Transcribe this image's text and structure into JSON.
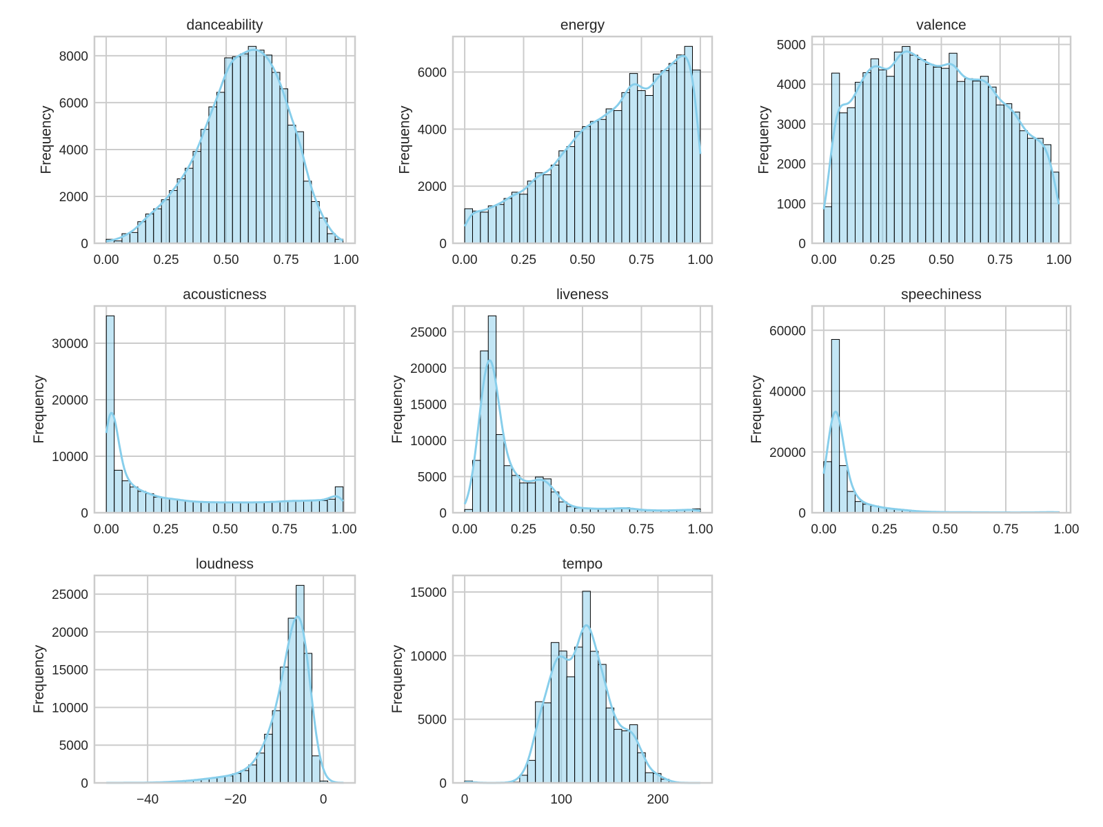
{
  "figure": {
    "colors": {
      "bar_fill": "#87CEEB",
      "bar_fill_opacity": 0.5,
      "bar_edge": "#000000",
      "kde_line": "#87CEEB",
      "grid": "#cccccc",
      "spine": "#cccccc",
      "text": "#262626"
    }
  },
  "chart_data": [
    {
      "type": "bar",
      "title": "danceability",
      "xlabel": "",
      "ylabel": "Frequency",
      "bins": {
        "start": 0.0,
        "width": 0.0329,
        "count": 30
      },
      "values": [
        170,
        100,
        410,
        460,
        920,
        1250,
        1470,
        1860,
        2250,
        2750,
        3200,
        3920,
        4860,
        5820,
        6440,
        7910,
        7960,
        8080,
        8400,
        8240,
        8030,
        7290,
        6590,
        5040,
        4760,
        2650,
        1780,
        1080,
        410,
        170
      ],
      "xlim": [
        -0.049,
        1.037
      ],
      "ylim": [
        0,
        8820
      ],
      "xticks": [
        0.0,
        0.25,
        0.5,
        0.75,
        1.0
      ],
      "xtick_labels": [
        "0.00",
        "0.25",
        "0.50",
        "0.75",
        "1.00"
      ],
      "yticks": [
        0,
        2000,
        4000,
        6000,
        8000
      ],
      "ytick_labels": [
        "0",
        "2000",
        "4000",
        "6000",
        "8000"
      ],
      "kde": true,
      "grid": true
    },
    {
      "type": "bar",
      "title": "energy",
      "xlabel": "",
      "ylabel": "Frequency",
      "bins": {
        "start": 0.0,
        "width": 0.03333,
        "count": 30
      },
      "values": [
        1210,
        1130,
        1090,
        1310,
        1360,
        1570,
        1790,
        1720,
        2180,
        2470,
        2400,
        2740,
        3240,
        3390,
        3920,
        4090,
        4270,
        4340,
        4710,
        4650,
        5280,
        5950,
        5350,
        5180,
        5930,
        6050,
        6300,
        6600,
        6900,
        6070
      ],
      "xlim": [
        -0.05,
        1.05
      ],
      "ylim": [
        0,
        7245
      ],
      "xticks": [
        0.0,
        0.25,
        0.5,
        0.75,
        1.0
      ],
      "xtick_labels": [
        "0.00",
        "0.25",
        "0.50",
        "0.75",
        "1.00"
      ],
      "yticks": [
        0,
        2000,
        4000,
        6000
      ],
      "ytick_labels": [
        "0",
        "2000",
        "4000",
        "6000"
      ],
      "kde": true,
      "grid": true
    },
    {
      "type": "bar",
      "title": "valence",
      "xlabel": "",
      "ylabel": "Frequency",
      "bins": {
        "start": 0.0,
        "width": 0.03333,
        "count": 30
      },
      "values": [
        920,
        4280,
        3280,
        3410,
        4050,
        4290,
        4640,
        4360,
        4200,
        4810,
        4950,
        4730,
        4620,
        4500,
        4430,
        4400,
        4780,
        4070,
        4140,
        4080,
        4200,
        3930,
        3480,
        3510,
        3300,
        2830,
        2640,
        2640,
        2480,
        1790
      ],
      "xlim": [
        -0.05,
        1.05
      ],
      "ylim": [
        0,
        5200
      ],
      "xticks": [
        0.0,
        0.25,
        0.5,
        0.75,
        1.0
      ],
      "xtick_labels": [
        "0.00",
        "0.25",
        "0.50",
        "0.75",
        "1.00"
      ],
      "yticks": [
        0,
        1000,
        2000,
        3000,
        4000,
        5000
      ],
      "ytick_labels": [
        "0",
        "1000",
        "2000",
        "3000",
        "4000",
        "5000"
      ],
      "kde": true,
      "grid": true
    },
    {
      "type": "bar",
      "title": "acousticness",
      "xlabel": "",
      "ylabel": "Frequency",
      "bins": {
        "start": 0.0,
        "width": 0.0332,
        "count": 30
      },
      "values": [
        34840,
        7520,
        5650,
        4550,
        3780,
        3370,
        2760,
        2560,
        2440,
        2240,
        2030,
        1910,
        1910,
        1830,
        1830,
        1830,
        1830,
        1830,
        1830,
        1830,
        1910,
        1910,
        2030,
        2110,
        2110,
        2110,
        2240,
        2150,
        2400,
        4590
      ],
      "xlim": [
        -0.05,
        1.046
      ],
      "ylim": [
        0,
        36580
      ],
      "xticks": [
        0.0,
        0.25,
        0.5,
        0.75,
        1.0
      ],
      "xtick_labels": [
        "0.00",
        "0.25",
        "0.50",
        "0.75",
        "1.00"
      ],
      "yticks": [
        0,
        10000,
        20000,
        30000
      ],
      "ytick_labels": [
        "0",
        "10000",
        "20000",
        "30000"
      ],
      "kde": true,
      "grid": true
    },
    {
      "type": "bar",
      "title": "liveness",
      "xlabel": "",
      "ylabel": "Frequency",
      "bins": {
        "start": 0.0,
        "width": 0.03333,
        "count": 30
      },
      "values": [
        450,
        7230,
        22360,
        27200,
        10800,
        6500,
        5160,
        4110,
        4110,
        4940,
        4680,
        2870,
        1500,
        860,
        640,
        620,
        540,
        540,
        540,
        600,
        700,
        540,
        380,
        340,
        320,
        320,
        320,
        380,
        380,
        540
      ],
      "xlim": [
        -0.05,
        1.05
      ],
      "ylim": [
        0,
        28560
      ],
      "xticks": [
        0.0,
        0.25,
        0.5,
        0.75,
        1.0
      ],
      "xtick_labels": [
        "0.00",
        "0.25",
        "0.50",
        "0.75",
        "1.00"
      ],
      "yticks": [
        0,
        5000,
        10000,
        15000,
        20000,
        25000
      ],
      "ytick_labels": [
        "0",
        "5000",
        "10000",
        "15000",
        "20000",
        "25000"
      ],
      "kde": true,
      "grid": true
    },
    {
      "type": "bar",
      "title": "speechiness",
      "xlabel": "",
      "ylabel": "Frequency",
      "bins": {
        "start": 0.0,
        "width": 0.0323,
        "count": 30
      },
      "values": [
        16800,
        57000,
        15500,
        7000,
        3700,
        2800,
        2200,
        1700,
        1300,
        1100,
        900,
        530,
        400,
        300,
        250,
        200,
        180,
        160,
        150,
        140,
        130,
        120,
        110,
        100,
        100,
        100,
        110,
        130,
        200,
        300
      ],
      "xlim": [
        -0.048,
        1.017
      ],
      "ylim": [
        0,
        68000
      ],
      "xticks": [
        0.0,
        0.25,
        0.5,
        0.75,
        1.0
      ],
      "xtick_labels": [
        "0.00",
        "0.25",
        "0.50",
        "0.75",
        "1.00"
      ],
      "yticks": [
        0,
        20000,
        40000,
        60000
      ],
      "ytick_labels": [
        "0",
        "20000",
        "40000",
        "60000"
      ],
      "kde": true,
      "grid": true
    },
    {
      "type": "bar",
      "title": "loudness",
      "xlabel": "",
      "ylabel": "Frequency",
      "bins": {
        "start": -49.4,
        "width": 1.8,
        "count": 30
      },
      "values": [
        10,
        10,
        15,
        20,
        25,
        40,
        60,
        100,
        150,
        220,
        300,
        400,
        520,
        650,
        800,
        930,
        1230,
        1640,
        2380,
        3950,
        6450,
        9570,
        15340,
        21820,
        26170,
        17160,
        3580,
        250,
        40,
        10
      ],
      "xlim": [
        -52.1,
        7.2
      ],
      "ylim": [
        0,
        27480
      ],
      "xticks": [
        -40,
        -20,
        0
      ],
      "xtick_labels": [
        "−40",
        "−20",
        "0"
      ],
      "yticks": [
        0,
        5000,
        10000,
        15000,
        20000,
        25000
      ],
      "ytick_labels": [
        "0",
        "5000",
        "10000",
        "15000",
        "20000",
        "25000"
      ],
      "kde": true,
      "grid": true
    },
    {
      "type": "bar",
      "title": "tempo",
      "xlabel": "",
      "ylabel": "Frequency",
      "bins": {
        "start": 0.0,
        "width": 8.13,
        "count": 30
      },
      "values": [
        150,
        0,
        0,
        0,
        0,
        20,
        60,
        600,
        1770,
        6380,
        6290,
        11030,
        10360,
        8340,
        10670,
        15060,
        10340,
        9310,
        5890,
        4210,
        4090,
        4570,
        2370,
        800,
        740,
        290,
        20,
        5,
        0,
        0
      ],
      "xlim": [
        -12.2,
        256.1
      ],
      "ylim": [
        0,
        16300
      ],
      "xticks": [
        0,
        100,
        200
      ],
      "xtick_labels": [
        "0",
        "100",
        "200"
      ],
      "yticks": [
        0,
        5000,
        10000,
        15000
      ],
      "ytick_labels": [
        "0",
        "5000",
        "10000",
        "15000"
      ],
      "kde": true,
      "grid": true
    }
  ]
}
